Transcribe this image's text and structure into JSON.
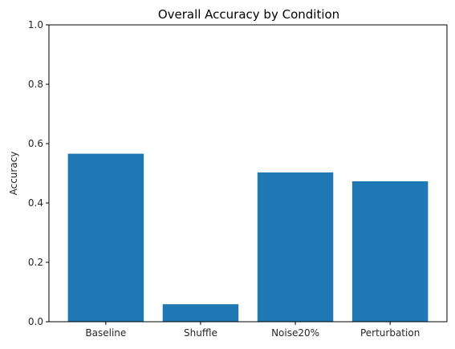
{
  "chart_data": {
    "type": "bar",
    "title": "Overall Accuracy by Condition",
    "xlabel": "",
    "ylabel": "Accuracy",
    "categories": [
      "Baseline",
      "Shuffle",
      "Noise20%",
      "Perturbation"
    ],
    "values": [
      0.566,
      0.059,
      0.503,
      0.473
    ],
    "ylim": [
      0,
      1.0
    ],
    "yticks": [
      0.0,
      0.2,
      0.4,
      0.6,
      0.8,
      1.0
    ],
    "ytick_labels": [
      "0.0",
      "0.2",
      "0.4",
      "0.6",
      "0.8",
      "1.0"
    ],
    "bar_color": "#1f77b4",
    "grid": false,
    "legend": "none"
  }
}
